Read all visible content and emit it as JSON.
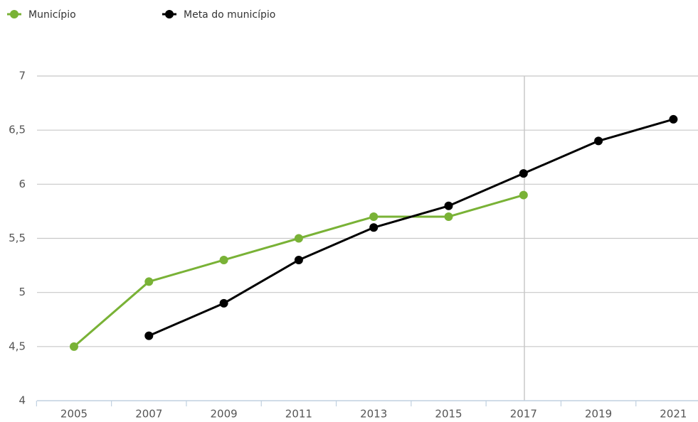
{
  "chart_data": {
    "type": "line",
    "categories": [
      "2005",
      "2007",
      "2009",
      "2011",
      "2013",
      "2015",
      "2017",
      "2019",
      "2021"
    ],
    "series": [
      {
        "name": "Município",
        "color": "#79b236",
        "values": [
          4.5,
          5.1,
          5.3,
          5.5,
          5.7,
          5.7,
          5.9,
          null,
          null
        ]
      },
      {
        "name": "Meta do município",
        "color": "#000000",
        "values": [
          null,
          4.6,
          4.9,
          5.3,
          5.6,
          5.8,
          6.1,
          6.4,
          6.6
        ]
      }
    ],
    "ylim": [
      4,
      7
    ],
    "yticks": [
      4,
      {
        "value": 4.5,
        "label": "4,5"
      },
      5,
      {
        "value": 5.5,
        "label": "5,5"
      },
      6,
      {
        "value": 6.5,
        "label": "6,5"
      },
      7
    ],
    "grid": true,
    "legend": "top-left"
  }
}
